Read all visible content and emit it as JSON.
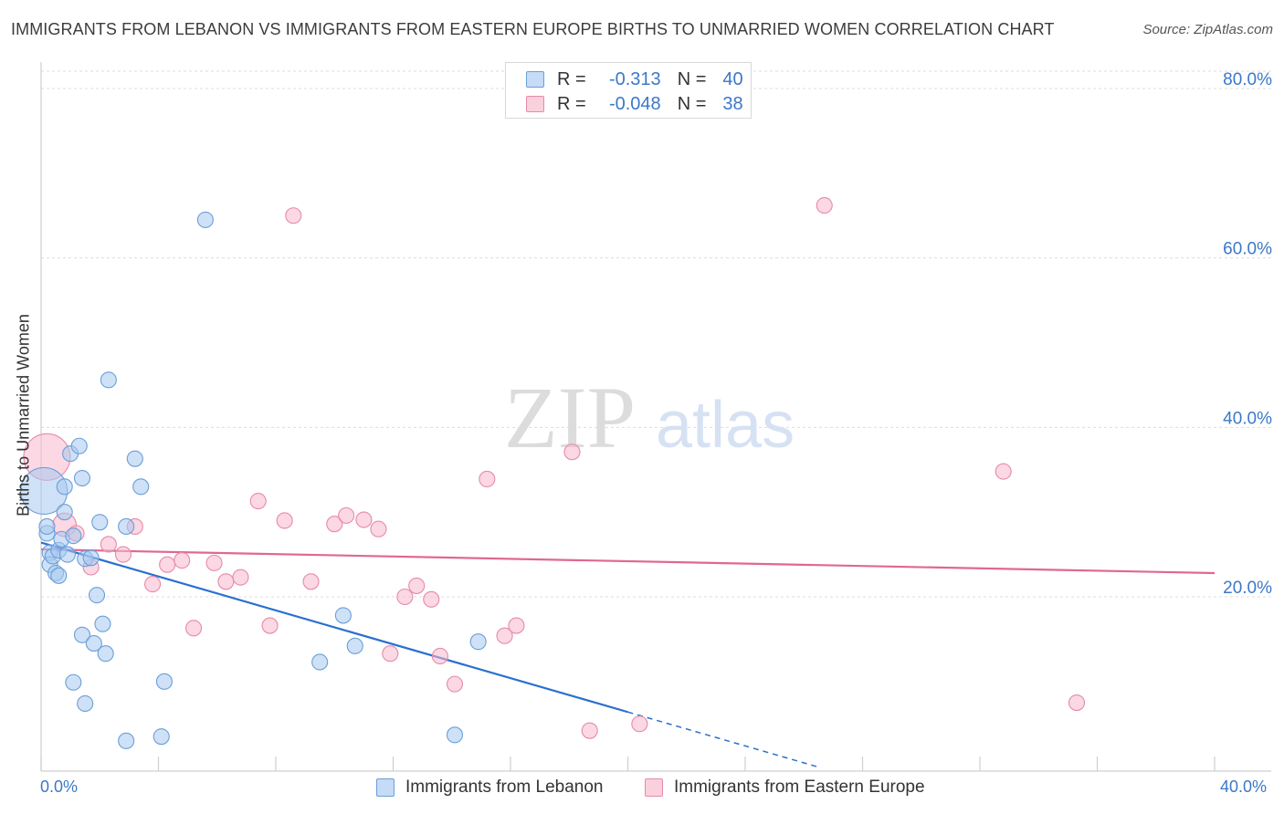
{
  "header": {
    "title": "IMMIGRANTS FROM LEBANON VS IMMIGRANTS FROM EASTERN EUROPE BIRTHS TO UNMARRIED WOMEN CORRELATION CHART",
    "source": "Source: ZipAtlas.com"
  },
  "watermark": {
    "zip": "ZIP",
    "atlas": "atlas"
  },
  "stats_legend": {
    "series1": {
      "r_label": "R =",
      "r_value": "-0.313",
      "n_label": "N =",
      "n_value": "40"
    },
    "series2": {
      "r_label": "R =",
      "r_value": "-0.048",
      "n_label": "N =",
      "n_value": "38"
    }
  },
  "bottom_legend": {
    "series1": "Immigrants from Lebanon",
    "series2": "Immigrants from Eastern Europe"
  },
  "axis_labels": {
    "x_min": "0.0%",
    "x_max": "40.0%"
  },
  "colors": {
    "blue_fill": "#a8c8f0",
    "blue_stroke": "#6a9fd8",
    "blue_line": "#2a70d0",
    "pink_fill": "#f7b8cc",
    "pink_stroke": "#e68aa8",
    "pink_line": "#e06890",
    "tick_text": "#3c78c8"
  },
  "chart_data": {
    "type": "scatter",
    "title": "IMMIGRANTS FROM LEBANON VS IMMIGRANTS FROM EASTERN EUROPE BIRTHS TO UNMARRIED WOMEN CORRELATION CHART",
    "xlabel": "",
    "ylabel": "Births to Unmarried Women",
    "xlim": [
      0,
      40
    ],
    "ylim": [
      0,
      83
    ],
    "yticks": [
      20,
      40,
      60,
      80
    ],
    "ytick_labels": [
      "20.0%",
      "40.0%",
      "60.0%",
      "80.0%"
    ],
    "xtick_labels": [
      "0.0%",
      "40.0%"
    ],
    "grid": true,
    "series": [
      {
        "name": "Immigrants from Lebanon",
        "r": -0.313,
        "n": 40,
        "trend": {
          "x0": 0,
          "y0": 26.4,
          "x1": 20,
          "y1": 6.4,
          "dash_to_x": 26.5
        },
        "points": [
          [
            0.1,
            32.5,
            3
          ],
          [
            0.2,
            27.5,
            1
          ],
          [
            0.2,
            28.3,
            1
          ],
          [
            0.3,
            25.2,
            1
          ],
          [
            0.3,
            23.8,
            1
          ],
          [
            0.4,
            24.8,
            1
          ],
          [
            0.5,
            22.8,
            1
          ],
          [
            0.6,
            22.5,
            1
          ],
          [
            0.6,
            25.5,
            1
          ],
          [
            0.7,
            26.8,
            1
          ],
          [
            0.8,
            33.0,
            1
          ],
          [
            0.8,
            30.0,
            1
          ],
          [
            0.9,
            25.0,
            1
          ],
          [
            1.0,
            36.9,
            1
          ],
          [
            1.1,
            27.2,
            1
          ],
          [
            1.3,
            37.8,
            1
          ],
          [
            1.4,
            34.0,
            1
          ],
          [
            1.4,
            15.5,
            1
          ],
          [
            1.5,
            24.5,
            1
          ],
          [
            1.5,
            7.4,
            1
          ],
          [
            1.7,
            24.6,
            1
          ],
          [
            1.8,
            14.5,
            1
          ],
          [
            1.9,
            20.2,
            1
          ],
          [
            2.0,
            28.8,
            1
          ],
          [
            2.1,
            16.8,
            1
          ],
          [
            2.2,
            13.3,
            1
          ],
          [
            2.3,
            45.6,
            1
          ],
          [
            2.9,
            3.0,
            1
          ],
          [
            2.9,
            28.3,
            1
          ],
          [
            3.2,
            36.3,
            1
          ],
          [
            3.4,
            33.0,
            1
          ],
          [
            4.1,
            3.5,
            1
          ],
          [
            4.2,
            10.0,
            1
          ],
          [
            5.6,
            64.5,
            1
          ],
          [
            9.5,
            12.3,
            1
          ],
          [
            10.3,
            17.8,
            1
          ],
          [
            10.7,
            14.2,
            1
          ],
          [
            14.1,
            3.7,
            1
          ],
          [
            14.9,
            14.7,
            1
          ],
          [
            1.1,
            9.9,
            1
          ]
        ]
      },
      {
        "name": "Immigrants from Eastern Europe",
        "r": -0.048,
        "n": 38,
        "trend": {
          "x0": 0,
          "y0": 25.6,
          "x1": 40,
          "y1": 22.8
        },
        "points": [
          [
            0.2,
            36.5,
            3
          ],
          [
            0.8,
            28.5,
            1.5
          ],
          [
            1.2,
            27.5,
            1
          ],
          [
            1.7,
            23.5,
            1
          ],
          [
            2.3,
            26.2,
            1
          ],
          [
            2.8,
            25.0,
            1
          ],
          [
            3.2,
            28.3,
            1
          ],
          [
            3.8,
            21.5,
            1
          ],
          [
            4.3,
            23.8,
            1
          ],
          [
            4.8,
            24.3,
            1
          ],
          [
            5.2,
            16.3,
            1
          ],
          [
            5.9,
            24.0,
            1
          ],
          [
            6.3,
            21.8,
            1
          ],
          [
            6.8,
            22.3,
            1
          ],
          [
            7.4,
            31.3,
            1
          ],
          [
            7.8,
            16.6,
            1
          ],
          [
            8.3,
            29.0,
            1
          ],
          [
            8.6,
            65.0,
            1
          ],
          [
            9.2,
            21.8,
            1
          ],
          [
            10.0,
            28.6,
            1
          ],
          [
            10.4,
            29.6,
            1
          ],
          [
            11.0,
            29.1,
            1
          ],
          [
            11.5,
            28.0,
            1
          ],
          [
            11.9,
            13.3,
            1
          ],
          [
            12.4,
            20.0,
            1
          ],
          [
            12.8,
            21.3,
            1
          ],
          [
            13.3,
            19.7,
            1
          ],
          [
            13.6,
            13.0,
            1
          ],
          [
            14.1,
            9.7,
            1
          ],
          [
            15.2,
            33.9,
            1
          ],
          [
            15.8,
            15.4,
            1
          ],
          [
            16.2,
            16.6,
            1
          ],
          [
            18.1,
            37.1,
            1
          ],
          [
            18.7,
            4.2,
            1
          ],
          [
            20.4,
            5.0,
            1
          ],
          [
            26.7,
            66.2,
            1
          ],
          [
            32.8,
            34.8,
            1
          ],
          [
            35.3,
            7.5,
            1
          ]
        ]
      }
    ]
  }
}
